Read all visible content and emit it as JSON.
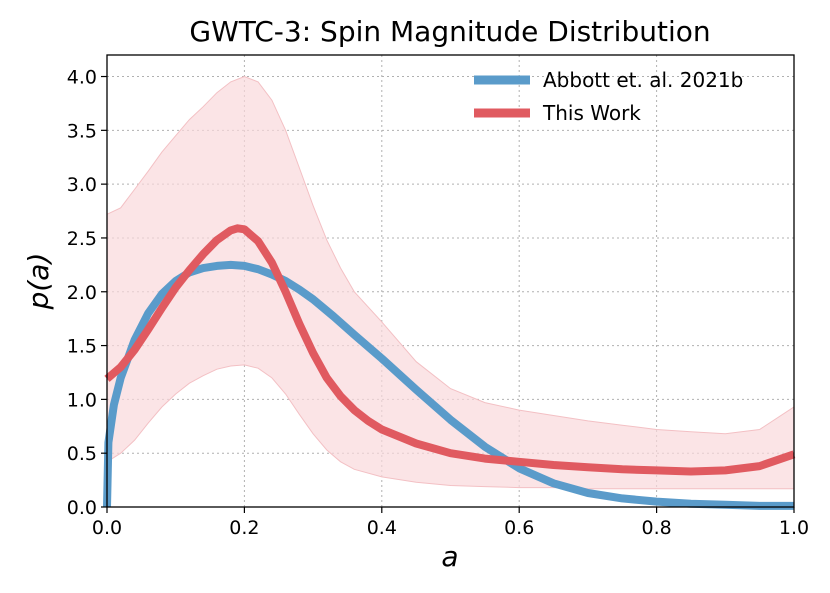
{
  "chart_data": {
    "type": "line",
    "title": "GWTC-3: Spin Magnitude Distribution",
    "xlabel": "a",
    "ylabel": "p(a)",
    "xlim": [
      0.0,
      1.0
    ],
    "ylim": [
      0.0,
      4.2
    ],
    "grid": true,
    "legend_position": "top-right",
    "xticks": [
      0.0,
      0.2,
      0.4,
      0.6,
      0.8,
      1.0
    ],
    "xtick_labels": [
      "0.0",
      "0.2",
      "0.4",
      "0.6",
      "0.8",
      "1.0"
    ],
    "yticks": [
      0.0,
      0.5,
      1.0,
      1.5,
      2.0,
      2.5,
      3.0,
      3.5,
      4.0
    ],
    "ytick_labels": [
      "0.0",
      "0.5",
      "1.0",
      "1.5",
      "2.0",
      "2.5",
      "3.0",
      "3.5",
      "4.0"
    ],
    "series": [
      {
        "name": "Abbott et. al. 2021b",
        "color": "#5a9bca",
        "x": [
          0.0,
          0.002,
          0.01,
          0.02,
          0.04,
          0.06,
          0.08,
          0.1,
          0.12,
          0.14,
          0.16,
          0.18,
          0.2,
          0.22,
          0.24,
          0.26,
          0.28,
          0.3,
          0.33,
          0.36,
          0.4,
          0.45,
          0.5,
          0.55,
          0.6,
          0.65,
          0.7,
          0.75,
          0.8,
          0.85,
          0.9,
          0.95,
          1.0
        ],
        "y": [
          0.0,
          0.6,
          0.95,
          1.2,
          1.55,
          1.8,
          1.98,
          2.1,
          2.18,
          2.22,
          2.24,
          2.25,
          2.24,
          2.21,
          2.16,
          2.1,
          2.02,
          1.93,
          1.77,
          1.6,
          1.38,
          1.09,
          0.81,
          0.56,
          0.36,
          0.22,
          0.13,
          0.08,
          0.05,
          0.03,
          0.02,
          0.01,
          0.01
        ]
      },
      {
        "name": "This Work",
        "color": "#e05a60",
        "x": [
          0.0,
          0.02,
          0.04,
          0.06,
          0.08,
          0.1,
          0.12,
          0.14,
          0.16,
          0.18,
          0.19,
          0.2,
          0.22,
          0.24,
          0.26,
          0.28,
          0.3,
          0.32,
          0.34,
          0.36,
          0.38,
          0.4,
          0.45,
          0.5,
          0.55,
          0.6,
          0.65,
          0.7,
          0.75,
          0.8,
          0.85,
          0.9,
          0.95,
          1.0
        ],
        "y": [
          1.19,
          1.3,
          1.46,
          1.65,
          1.85,
          2.04,
          2.2,
          2.35,
          2.48,
          2.57,
          2.59,
          2.58,
          2.47,
          2.27,
          2.0,
          1.7,
          1.43,
          1.2,
          1.03,
          0.9,
          0.8,
          0.72,
          0.59,
          0.5,
          0.45,
          0.42,
          0.39,
          0.37,
          0.35,
          0.34,
          0.33,
          0.34,
          0.38,
          0.49
        ]
      }
    ],
    "band": {
      "series": "This Work",
      "color": "#f9d9dc",
      "x": [
        0.0,
        0.02,
        0.04,
        0.06,
        0.08,
        0.1,
        0.12,
        0.14,
        0.16,
        0.18,
        0.2,
        0.22,
        0.24,
        0.26,
        0.28,
        0.3,
        0.32,
        0.34,
        0.36,
        0.4,
        0.45,
        0.5,
        0.55,
        0.6,
        0.65,
        0.7,
        0.75,
        0.8,
        0.85,
        0.9,
        0.95,
        1.0
      ],
      "upper": [
        2.72,
        2.78,
        2.95,
        3.12,
        3.3,
        3.45,
        3.6,
        3.72,
        3.85,
        3.95,
        4.0,
        3.95,
        3.78,
        3.5,
        3.15,
        2.8,
        2.48,
        2.22,
        2.0,
        1.72,
        1.35,
        1.1,
        0.97,
        0.9,
        0.85,
        0.8,
        0.76,
        0.72,
        0.7,
        0.68,
        0.72,
        0.93
      ],
      "lower": [
        0.42,
        0.5,
        0.62,
        0.78,
        0.93,
        1.05,
        1.15,
        1.22,
        1.28,
        1.31,
        1.32,
        1.29,
        1.2,
        1.05,
        0.86,
        0.68,
        0.53,
        0.42,
        0.35,
        0.28,
        0.23,
        0.2,
        0.19,
        0.18,
        0.18,
        0.17,
        0.17,
        0.17,
        0.17,
        0.17,
        0.17,
        0.17
      ]
    }
  }
}
